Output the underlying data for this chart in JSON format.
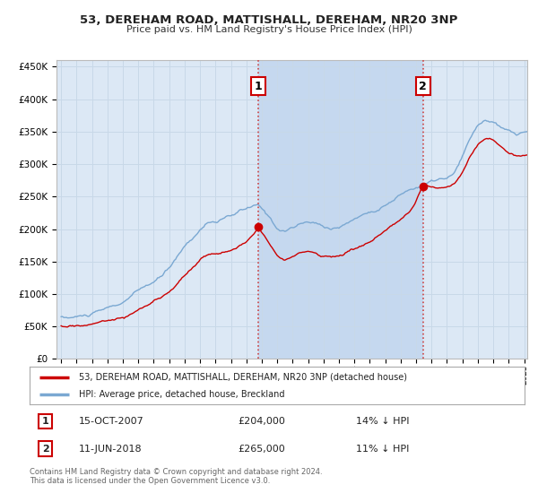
{
  "title": "53, DEREHAM ROAD, MATTISHALL, DEREHAM, NR20 3NP",
  "subtitle": "Price paid vs. HM Land Registry's House Price Index (HPI)",
  "legend_label_red": "53, DEREHAM ROAD, MATTISHALL, DEREHAM, NR20 3NP (detached house)",
  "legend_label_blue": "HPI: Average price, detached house, Breckland",
  "annotation1_date": "15-OCT-2007",
  "annotation1_price": "£204,000",
  "annotation1_hpi": "14% ↓ HPI",
  "annotation2_date": "11-JUN-2018",
  "annotation2_price": "£265,000",
  "annotation2_hpi": "11% ↓ HPI",
  "footnote": "Contains HM Land Registry data © Crown copyright and database right 2024.\nThis data is licensed under the Open Government Licence v3.0.",
  "ylim": [
    0,
    460000
  ],
  "yticks": [
    0,
    50000,
    100000,
    150000,
    200000,
    250000,
    300000,
    350000,
    400000,
    450000
  ],
  "background_color": "#dce8f5",
  "shade_color": "#c5d8ef",
  "red_color": "#cc0000",
  "blue_color": "#7aa8d2",
  "grid_color": "#c8d8e8",
  "anno_x1": 2007.79,
  "anno_x2": 2018.44,
  "anno_y1": 204000,
  "anno_y2": 265000,
  "xmin": 1995.0,
  "xmax": 2025.2
}
